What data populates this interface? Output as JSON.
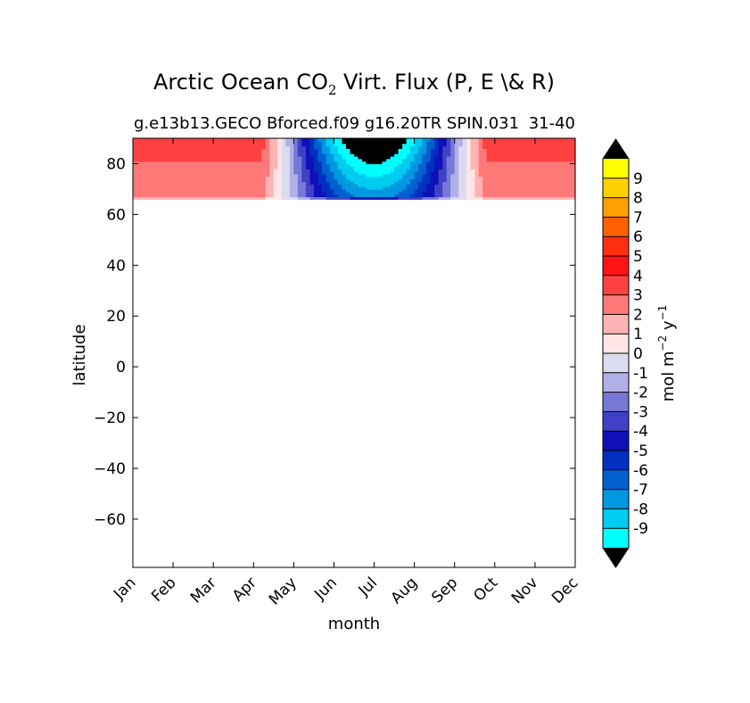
{
  "chart_data": {
    "type": "heatmap",
    "title": "Arctic Ocean CO",
    "title_subscript": "2",
    "title_suffix": " Virt. Flux (P, E \\& R)",
    "subtitle_left": "g.e13b13.GECO Bforced.f09 g16.20TR SPIN.031",
    "subtitle_right": "31-40",
    "xlabel": "month",
    "ylabel": "latitude",
    "x_ticks": [
      "Jan",
      "Feb",
      "Mar",
      "Apr",
      "May",
      "Jun",
      "Jul",
      "Aug",
      "Sep",
      "Oct",
      "Nov",
      "Dec"
    ],
    "y_ticks": [
      80,
      60,
      40,
      20,
      0,
      -20,
      -40,
      -60
    ],
    "y_tick_labels": [
      "80",
      "60",
      "40",
      "20",
      "0",
      "−20",
      "−40",
      "−60"
    ],
    "ylim": [
      -79,
      90
    ],
    "xlim": [
      1,
      12
    ],
    "grid": false,
    "colorbar": {
      "label": "mol m",
      "label_sup1": "−2",
      "label_mid": " y",
      "label_sup2": "−1",
      "levels": [
        "9",
        "8",
        "7",
        "6",
        "5",
        "4",
        "3",
        "2",
        "1",
        "0",
        "-1",
        "-2",
        "-3",
        "-4",
        "-5",
        "-6",
        "-7",
        "-8",
        "-9"
      ],
      "colors": [
        "#ffff00",
        "#ffd000",
        "#ffa000",
        "#ff6000",
        "#ff3010",
        "#ff1414",
        "#ff4040",
        "#ff7878",
        "#ffb4b4",
        "#ffe6e6",
        "#dcdcf0",
        "#b0b0e6",
        "#7878d8",
        "#4040c8",
        "#1010b8",
        "#0030c0",
        "#0060d0",
        "#0098e0",
        "#00ccf0",
        "#00ffff"
      ],
      "extend_color": "#000000"
    },
    "field_description_levels": {
      "month_min_lat_data": 66,
      "lat_max": 90,
      "winter_value": 3.5,
      "summer_value": -10
    }
  }
}
